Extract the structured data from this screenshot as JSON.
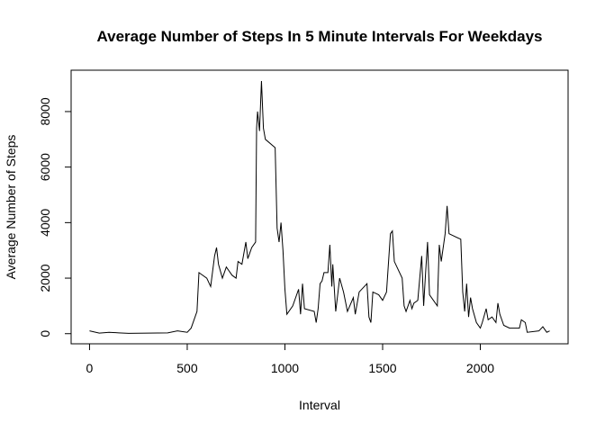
{
  "chart_data": {
    "type": "line",
    "title": "Average Number of Steps In 5 Minute Intervals For Weekdays",
    "x_label": "Interval",
    "y_label": "Average Number of Steps",
    "color": "#000000",
    "x": [
      0,
      50,
      100,
      150,
      200,
      300,
      400,
      450,
      500,
      520,
      550,
      560,
      600,
      620,
      640,
      650,
      660,
      680,
      700,
      730,
      750,
      760,
      780,
      800,
      810,
      830,
      850,
      855,
      860,
      870,
      880,
      890,
      900,
      950,
      960,
      970,
      980,
      990,
      1000,
      1010,
      1040,
      1070,
      1080,
      1090,
      1100,
      1150,
      1160,
      1170,
      1180,
      1190,
      1200,
      1220,
      1230,
      1240,
      1245,
      1260,
      1280,
      1300,
      1320,
      1350,
      1360,
      1380,
      1420,
      1430,
      1440,
      1450,
      1480,
      1500,
      1520,
      1540,
      1550,
      1560,
      1600,
      1610,
      1620,
      1640,
      1650,
      1660,
      1680,
      1700,
      1710,
      1720,
      1730,
      1740,
      1780,
      1790,
      1800,
      1820,
      1830,
      1840,
      1900,
      1910,
      1920,
      1930,
      1940,
      1950,
      1960,
      1980,
      2000,
      2010,
      2030,
      2040,
      2060,
      2080,
      2090,
      2100,
      2120,
      2150,
      2200,
      2210,
      2230,
      2240,
      2300,
      2320,
      2340,
      2355
    ],
    "values": [
      100,
      20,
      50,
      30,
      10,
      20,
      30,
      100,
      50,
      200,
      800,
      2200,
      2000,
      1700,
      2800,
      3100,
      2500,
      2000,
      2400,
      2100,
      2000,
      2600,
      2500,
      3300,
      2700,
      3100,
      3300,
      7400,
      8000,
      7300,
      9100,
      7400,
      7000,
      6700,
      3800,
      3300,
      4000,
      3000,
      1600,
      700,
      1000,
      1600,
      700,
      1800,
      900,
      800,
      400,
      900,
      1800,
      1900,
      2200,
      2200,
      3200,
      1700,
      2500,
      800,
      2000,
      1500,
      800,
      1300,
      700,
      1500,
      1800,
      600,
      400,
      1500,
      1400,
      1200,
      1500,
      3600,
      3700,
      2600,
      2000,
      1000,
      800,
      1200,
      900,
      1100,
      1200,
      2800,
      1000,
      2200,
      3300,
      1400,
      1000,
      3200,
      2600,
      3600,
      4600,
      3600,
      3400,
      1500,
      800,
      1800,
      600,
      1300,
      900,
      400,
      200,
      400,
      900,
      500,
      600,
      400,
      1100,
      700,
      300,
      200,
      200,
      500,
      400,
      50,
      100,
      250,
      50,
      100
    ],
    "xlim": [
      -94.2,
      2449.2
    ],
    "ylim": [
      -365,
      9490
    ],
    "xticks": [
      0,
      500,
      1000,
      1500,
      2000
    ],
    "yticks": [
      0,
      2000,
      4000,
      6000,
      8000
    ]
  }
}
